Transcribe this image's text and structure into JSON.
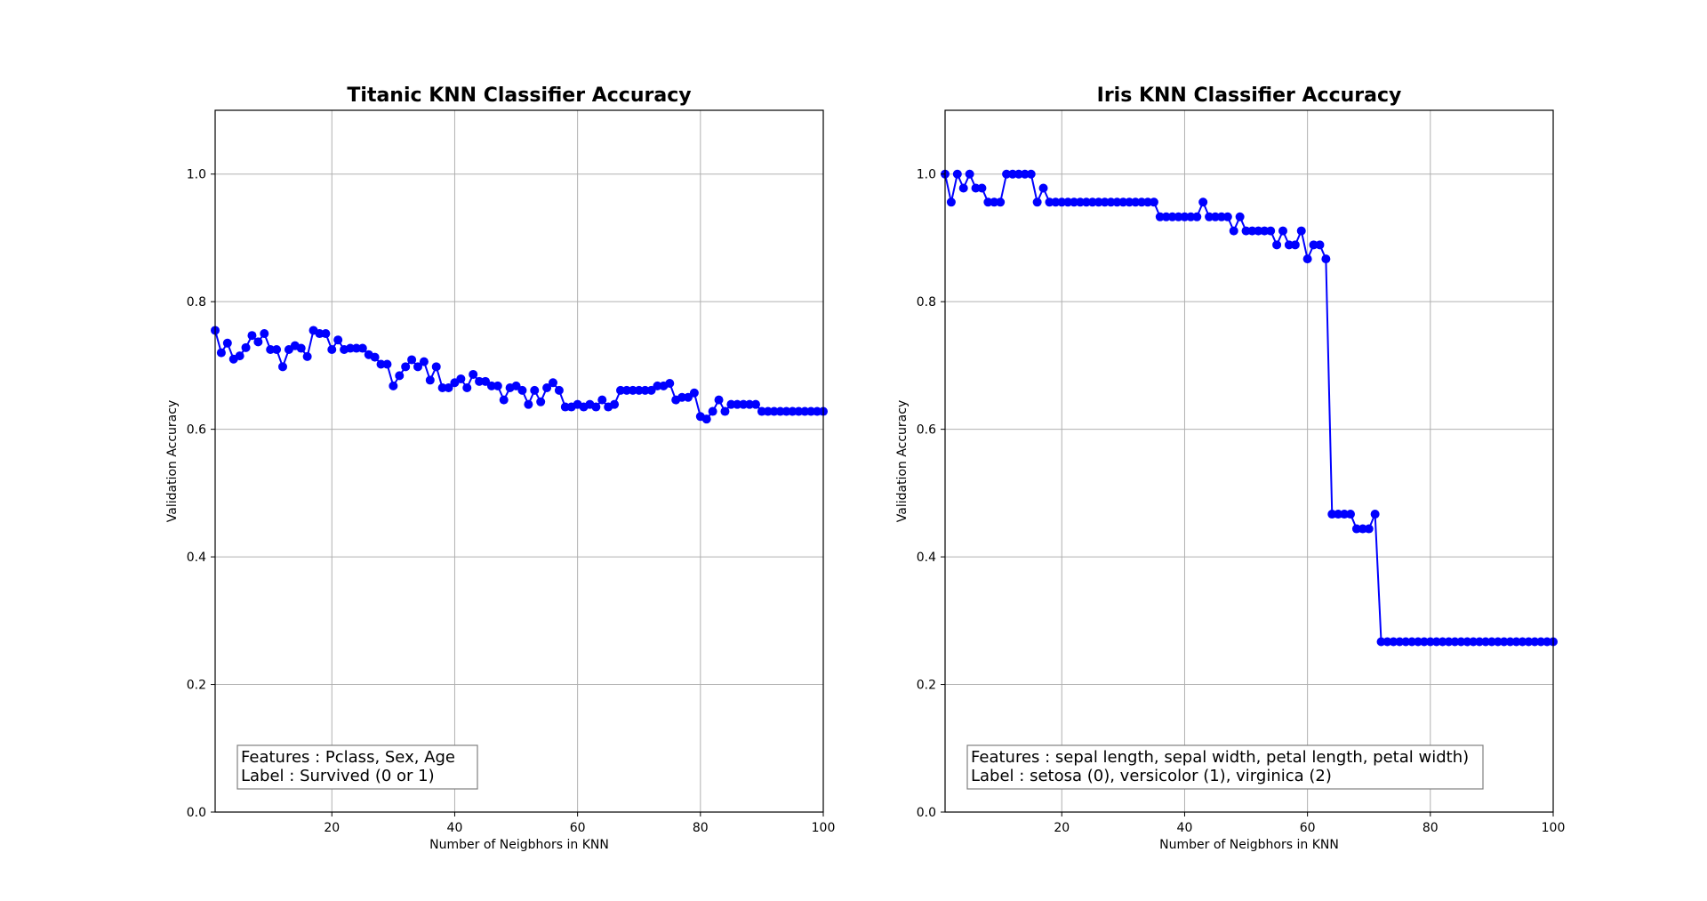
{
  "chart_data": [
    {
      "type": "line",
      "title": "Titanic KNN Classifier Accuracy",
      "xlabel": "Number of Neigbhors in KNN",
      "ylabel": "Validation Accuracy",
      "xlim": [
        1,
        100
      ],
      "ylim": [
        0,
        1.1
      ],
      "xticks": [
        20,
        40,
        60,
        80,
        100
      ],
      "yticks": [
        0.0,
        0.2,
        0.4,
        0.6,
        0.8,
        1.0
      ],
      "grid": true,
      "color": "#0000ff",
      "annotation": [
        "Features : Pclass, Sex, Age",
        "Label : Survived (0 or 1)"
      ],
      "annotation_position": "bottom-left",
      "series": [
        {
          "x": [
            1,
            2,
            3,
            4,
            5,
            6,
            7,
            8,
            9,
            10,
            11,
            12,
            13,
            14,
            15,
            16,
            17,
            18,
            19,
            20,
            21,
            22,
            23,
            24,
            25,
            26,
            27,
            28,
            29,
            30,
            31,
            32,
            33,
            34,
            35,
            36,
            37,
            38,
            39,
            40,
            41,
            42,
            43,
            44,
            45,
            46,
            47,
            48,
            49,
            50,
            51,
            52,
            53,
            54,
            55,
            56,
            57,
            58,
            59,
            60,
            61,
            62,
            63,
            64,
            65,
            66,
            67,
            68,
            69,
            70,
            71,
            72,
            73,
            74,
            75,
            76,
            77,
            78,
            79,
            80,
            81,
            82,
            83,
            84,
            85,
            86,
            87,
            88,
            89,
            90,
            91,
            92,
            93,
            94,
            95,
            96,
            97,
            98,
            99,
            100
          ],
          "values": [
            0.755,
            0.72,
            0.735,
            0.71,
            0.715,
            0.728,
            0.747,
            0.737,
            0.75,
            0.725,
            0.725,
            0.698,
            0.725,
            0.731,
            0.727,
            0.714,
            0.755,
            0.75,
            0.75,
            0.725,
            0.74,
            0.725,
            0.727,
            0.727,
            0.727,
            0.717,
            0.713,
            0.702,
            0.702,
            0.668,
            0.684,
            0.698,
            0.709,
            0.698,
            0.706,
            0.677,
            0.698,
            0.665,
            0.665,
            0.673,
            0.679,
            0.665,
            0.686,
            0.675,
            0.675,
            0.668,
            0.668,
            0.646,
            0.665,
            0.668,
            0.661,
            0.639,
            0.661,
            0.643,
            0.665,
            0.673,
            0.661,
            0.635,
            0.635,
            0.639,
            0.635,
            0.639,
            0.635,
            0.646,
            0.635,
            0.639,
            0.661,
            0.661,
            0.661,
            0.661,
            0.661,
            0.661,
            0.668,
            0.668,
            0.672,
            0.646,
            0.65,
            0.65,
            0.657,
            0.62,
            0.616,
            0.628,
            0.646,
            0.628,
            0.639,
            0.639,
            0.639,
            0.639,
            0.639,
            0.628,
            0.628,
            0.628,
            0.628,
            0.628,
            0.628,
            0.628,
            0.628,
            0.628,
            0.628,
            0.628
          ]
        }
      ]
    },
    {
      "type": "line",
      "title": "Iris KNN Classifier Accuracy",
      "xlabel": "Number of Neigbhors in KNN",
      "ylabel": "Validation Accuracy",
      "xlim": [
        1,
        100
      ],
      "ylim": [
        0,
        1.1
      ],
      "xticks": [
        20,
        40,
        60,
        80,
        100
      ],
      "yticks": [
        0.0,
        0.2,
        0.4,
        0.6,
        0.8,
        1.0
      ],
      "grid": true,
      "color": "#0000ff",
      "annotation": [
        "Features : sepal length, sepal width, petal length, petal width)",
        "Label : setosa (0), versicolor (1), virginica (2)"
      ],
      "annotation_position": "bottom-left",
      "series": [
        {
          "x": [
            1,
            2,
            3,
            4,
            5,
            6,
            7,
            8,
            9,
            10,
            11,
            12,
            13,
            14,
            15,
            16,
            17,
            18,
            19,
            20,
            21,
            22,
            23,
            24,
            25,
            26,
            27,
            28,
            29,
            30,
            31,
            32,
            33,
            34,
            35,
            36,
            37,
            38,
            39,
            40,
            41,
            42,
            43,
            44,
            45,
            46,
            47,
            48,
            49,
            50,
            51,
            52,
            53,
            54,
            55,
            56,
            57,
            58,
            59,
            60,
            61,
            62,
            63,
            64,
            65,
            66,
            67,
            68,
            69,
            70,
            71,
            72,
            73,
            74,
            75,
            76,
            77,
            78,
            79,
            80,
            81,
            82,
            83,
            84,
            85,
            86,
            87,
            88,
            89,
            90,
            91,
            92,
            93,
            94,
            95,
            96,
            97,
            98,
            99,
            100
          ],
          "values": [
            1.0,
            0.956,
            1.0,
            0.978,
            1.0,
            0.978,
            0.978,
            0.956,
            0.956,
            0.956,
            1.0,
            1.0,
            1.0,
            1.0,
            1.0,
            0.956,
            0.978,
            0.956,
            0.956,
            0.956,
            0.956,
            0.956,
            0.956,
            0.956,
            0.956,
            0.956,
            0.956,
            0.956,
            0.956,
            0.956,
            0.956,
            0.956,
            0.956,
            0.956,
            0.956,
            0.933,
            0.933,
            0.933,
            0.933,
            0.933,
            0.933,
            0.933,
            0.956,
            0.933,
            0.933,
            0.933,
            0.933,
            0.911,
            0.933,
            0.911,
            0.911,
            0.911,
            0.911,
            0.911,
            0.889,
            0.911,
            0.889,
            0.889,
            0.911,
            0.867,
            0.889,
            0.889,
            0.867,
            0.467,
            0.467,
            0.467,
            0.467,
            0.444,
            0.444,
            0.444,
            0.467,
            0.267,
            0.267,
            0.267,
            0.267,
            0.267,
            0.267,
            0.267,
            0.267,
            0.267,
            0.267,
            0.267,
            0.267,
            0.267,
            0.267,
            0.267,
            0.267,
            0.267,
            0.267,
            0.267,
            0.267,
            0.267,
            0.267,
            0.267,
            0.267,
            0.267,
            0.267,
            0.267,
            0.267,
            0.267
          ]
        }
      ]
    }
  ]
}
